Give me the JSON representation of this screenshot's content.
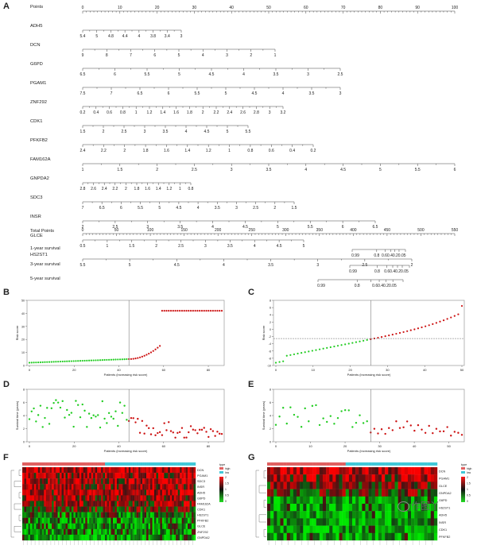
{
  "panels": {
    "A": "A",
    "B": "B",
    "C": "C",
    "D": "D",
    "E": "E",
    "F": "F",
    "G": "G"
  },
  "nomogram": {
    "rows": [
      {
        "name": "Points",
        "ticks": [
          "0",
          "10",
          "20",
          "30",
          "40",
          "50",
          "60",
          "70",
          "80",
          "90",
          "100"
        ]
      },
      {
        "name": "ADH5",
        "ticks": [
          "5.4",
          "5",
          "4.8",
          "4.4",
          "4",
          "3.8",
          "3.4",
          "3"
        ]
      },
      {
        "name": "DCN",
        "ticks": [
          "9",
          "8",
          "7",
          "6",
          "5",
          "4",
          "3",
          "2",
          "1"
        ]
      },
      {
        "name": "G6PD",
        "ticks": [
          "6.5",
          "6",
          "5.5",
          "5",
          "4.5",
          "4",
          "3.5",
          "3",
          "2.5"
        ]
      },
      {
        "name": "PGAM1",
        "ticks": [
          "7.5",
          "7",
          "6.5",
          "6",
          "5.5",
          "5",
          "4.5",
          "4",
          "3.5",
          "3"
        ]
      },
      {
        "name": "ZNF292",
        "ticks": [
          "0.2",
          "0.4",
          "0.6",
          "0.8",
          "1",
          "1.2",
          "1.4",
          "1.6",
          "1.8",
          "2",
          "2.2",
          "2.4",
          "2.6",
          "2.8",
          "3",
          "3.2"
        ]
      },
      {
        "name": "CDK1",
        "ticks": [
          "1.5",
          "2",
          "2.5",
          "3",
          "3.5",
          "4",
          "4.5",
          "5",
          "5.5"
        ]
      },
      {
        "name": "PFKFB2",
        "ticks": [
          "2.4",
          "2.2",
          "2",
          "1.8",
          "1.6",
          "1.4",
          "1.2",
          "1",
          "0.8",
          "0.6",
          "0.4",
          "0.2"
        ]
      },
      {
        "name": "FAM162A",
        "ticks": [
          "1",
          "1.5",
          "2",
          "2.5",
          "3",
          "3.5",
          "4",
          "4.5",
          "5",
          "5.5",
          "6"
        ]
      },
      {
        "name": "GNPDA2",
        "ticks": [
          "2.8",
          "2.6",
          "2.4",
          "2.2",
          "2",
          "1.8",
          "1.6",
          "1.4",
          "1.2",
          "1",
          "0.8"
        ]
      },
      {
        "name": "SDC3",
        "ticks": [
          "7",
          "6.5",
          "6",
          "5.5",
          "5",
          "4.5",
          "4",
          "3.5",
          "3",
          "2.5",
          "2",
          "1.5"
        ]
      },
      {
        "name": "INSR",
        "ticks": [
          "2",
          "2.5",
          "3",
          "3.5",
          "4",
          "4.5",
          "5",
          "5.5",
          "6",
          "6.5"
        ]
      },
      {
        "name": "GLCE",
        "ticks": [
          "0.5",
          "1",
          "1.5",
          "2",
          "2.5",
          "3",
          "3.5",
          "4",
          "4.5",
          "5"
        ]
      },
      {
        "name": "HS2ST1",
        "ticks": [
          "5.5",
          "5",
          "4.5",
          "4",
          "3.5",
          "3",
          "2.5",
          "2"
        ]
      },
      {
        "name": "Total Points",
        "ticks": [
          "0",
          "50",
          "100",
          "150",
          "200",
          "250",
          "300",
          "350",
          "400",
          "450",
          "500",
          "550"
        ]
      },
      {
        "name": "1-year survival",
        "ticks": [
          "0.99",
          "0.8",
          "0.60.40.20.05"
        ]
      },
      {
        "name": "3-year survival",
        "ticks": [
          "0.99",
          "0.8",
          "0.60.40.20.05"
        ]
      },
      {
        "name": "5-year survival",
        "ticks": [
          "0.99",
          "0.8",
          "0.60.40.20.05"
        ]
      }
    ]
  },
  "chart_data": [
    {
      "panel": "B",
      "type": "scatter",
      "xlabel": "Patients (increasing risk score)",
      "ylabel": "Risk score",
      "xticks": [
        "0",
        "20",
        "40",
        "60",
        "80"
      ],
      "yticks": [
        "0",
        "10",
        "20",
        "30",
        "40",
        "50"
      ],
      "cutoff_index": 45,
      "low_color": "#22cc22",
      "high_color": "#cc1111"
    },
    {
      "panel": "C",
      "type": "scatter",
      "xlabel": "Patients (increasing risk score)",
      "ylabel": "Risk score",
      "xticks": [
        "0",
        "10",
        "20",
        "30",
        "40",
        "50"
      ],
      "yticks": [
        "-10",
        "-8",
        "-6",
        "-4",
        "-2",
        "0",
        "2",
        "4",
        "6",
        "8"
      ],
      "cutoff_index": 26,
      "low_color": "#22cc22",
      "high_color": "#cc1111"
    },
    {
      "panel": "D",
      "type": "scatter",
      "xlabel": "Patients (increasing risk score)",
      "ylabel": "Survival time (years)",
      "xticks": [
        "0",
        "20",
        "40",
        "60",
        "80"
      ],
      "yticks": [
        "0",
        "2",
        "4",
        "6",
        "8"
      ],
      "cutoff_index": 45,
      "low_color": "#22cc22",
      "high_color": "#cc1111"
    },
    {
      "panel": "E",
      "type": "scatter",
      "xlabel": "Patients (increasing risk score)",
      "ylabel": "Survival time (years)",
      "xticks": [
        "0",
        "10",
        "20",
        "30",
        "40",
        "50"
      ],
      "yticks": [
        "0",
        "2",
        "4",
        "6",
        "8"
      ],
      "cutoff_index": 26,
      "low_color": "#22cc22",
      "high_color": "#cc1111"
    },
    {
      "panel": "F",
      "type": "heatmap",
      "rows": [
        "DCN",
        "PGAM1",
        "SDC3",
        "INSR",
        "ADH5",
        "G6PD",
        "FAM162A",
        "CDK1",
        "HS2ST1",
        "PFKFB2",
        "GLCE",
        "ZNF292",
        "GNPDA2"
      ],
      "legend_title": "type",
      "legend_items": [
        "high",
        "low"
      ],
      "scale": [
        "2",
        "1.5",
        "1",
        "0.5",
        "0"
      ]
    },
    {
      "panel": "G",
      "type": "heatmap",
      "rows": [
        "DCN",
        "PGAM1",
        "GLCE",
        "GNPDA2",
        "G6PD",
        "HS2ST1",
        "ADH5",
        "INSR",
        "CDK1",
        "PFKFB2"
      ],
      "legend_title": "type",
      "legend_items": [
        "high",
        "low"
      ],
      "scale": [
        "2",
        "1.5",
        "1",
        "0.5",
        "0"
      ]
    }
  ],
  "watermark": "作图丫",
  "colors": {
    "high": "#cc1111",
    "low": "#22cc22",
    "bar_high": "#e06060",
    "bar_low": "#40c8d8"
  }
}
